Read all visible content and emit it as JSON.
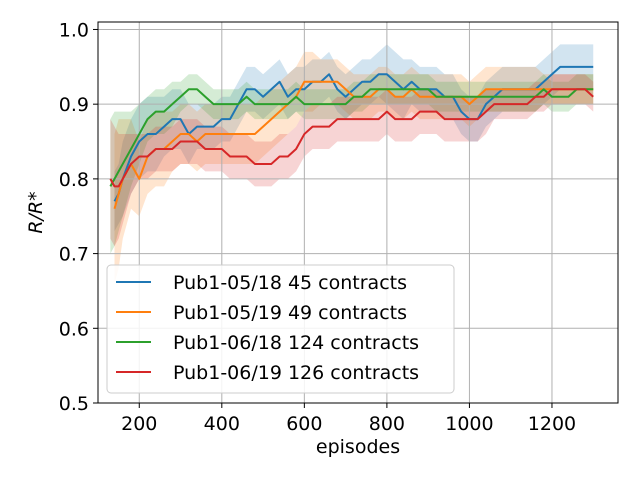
{
  "chart_data": {
    "type": "line",
    "title": "",
    "xlabel": "episodes",
    "ylabel": "R/R*",
    "xlim": [
      100,
      1360
    ],
    "ylim": [
      0.5,
      1.01
    ],
    "xticks": [
      200,
      400,
      600,
      800,
      1000,
      1200
    ],
    "yticks": [
      0.5,
      0.6,
      0.7,
      0.8,
      0.9,
      1.0
    ],
    "xtick_labels": [
      "200",
      "400",
      "600",
      "800",
      "1000",
      "1200"
    ],
    "ytick_labels": [
      "0.5",
      "0.6",
      "0.7",
      "0.8",
      "0.9",
      "1.0"
    ],
    "grid": true,
    "legend_position": "lower-left",
    "series": [
      {
        "name": "Pub1-05/18 45 contracts",
        "color": "#1f77b4",
        "x": [
          140,
          150,
          160,
          180,
          200,
          220,
          240,
          260,
          280,
          300,
          320,
          340,
          360,
          380,
          400,
          420,
          440,
          460,
          480,
          500,
          520,
          540,
          560,
          580,
          600,
          620,
          640,
          660,
          680,
          700,
          720,
          740,
          760,
          780,
          800,
          820,
          840,
          860,
          880,
          900,
          920,
          940,
          960,
          980,
          1000,
          1020,
          1040,
          1060,
          1080,
          1100,
          1120,
          1140,
          1160,
          1180,
          1200,
          1220,
          1240,
          1260,
          1280,
          1300
        ],
        "y": [
          0.77,
          0.78,
          0.8,
          0.83,
          0.85,
          0.86,
          0.86,
          0.87,
          0.88,
          0.88,
          0.86,
          0.87,
          0.87,
          0.87,
          0.88,
          0.88,
          0.9,
          0.92,
          0.92,
          0.91,
          0.92,
          0.93,
          0.91,
          0.92,
          0.92,
          0.93,
          0.93,
          0.94,
          0.92,
          0.91,
          0.92,
          0.93,
          0.93,
          0.94,
          0.94,
          0.93,
          0.92,
          0.93,
          0.92,
          0.92,
          0.92,
          0.91,
          0.91,
          0.89,
          0.88,
          0.88,
          0.9,
          0.91,
          0.92,
          0.92,
          0.92,
          0.92,
          0.92,
          0.93,
          0.94,
          0.95,
          0.95,
          0.95,
          0.95,
          0.95
        ],
        "band": [
          0.04,
          0.04,
          0.05,
          0.05,
          0.05,
          0.05,
          0.05,
          0.04,
          0.04,
          0.04,
          0.04,
          0.03,
          0.03,
          0.03,
          0.03,
          0.03,
          0.03,
          0.03,
          0.03,
          0.03,
          0.03,
          0.03,
          0.03,
          0.03,
          0.03,
          0.03,
          0.03,
          0.03,
          0.03,
          0.03,
          0.03,
          0.03,
          0.03,
          0.03,
          0.04,
          0.04,
          0.04,
          0.03,
          0.03,
          0.03,
          0.03,
          0.03,
          0.03,
          0.03,
          0.03,
          0.03,
          0.03,
          0.03,
          0.03,
          0.03,
          0.03,
          0.03,
          0.03,
          0.03,
          0.03,
          0.03,
          0.03,
          0.03,
          0.03,
          0.03
        ]
      },
      {
        "name": "Pub1-05/19 49 contracts",
        "color": "#ff7f0e",
        "x": [
          140,
          150,
          160,
          180,
          200,
          220,
          240,
          260,
          280,
          300,
          320,
          340,
          360,
          380,
          400,
          420,
          440,
          460,
          480,
          500,
          520,
          540,
          560,
          580,
          600,
          620,
          640,
          660,
          680,
          700,
          720,
          740,
          760,
          780,
          800,
          820,
          840,
          860,
          880,
          900,
          920,
          940,
          960,
          980,
          1000,
          1020,
          1040,
          1060,
          1080,
          1100,
          1120,
          1140,
          1160,
          1180,
          1200,
          1220,
          1240,
          1260,
          1280,
          1300
        ],
        "y": [
          0.76,
          0.78,
          0.8,
          0.82,
          0.8,
          0.83,
          0.84,
          0.84,
          0.85,
          0.86,
          0.86,
          0.85,
          0.86,
          0.86,
          0.86,
          0.86,
          0.86,
          0.86,
          0.86,
          0.87,
          0.88,
          0.89,
          0.9,
          0.91,
          0.93,
          0.93,
          0.93,
          0.93,
          0.93,
          0.92,
          0.91,
          0.91,
          0.91,
          0.92,
          0.92,
          0.91,
          0.91,
          0.92,
          0.91,
          0.91,
          0.91,
          0.91,
          0.91,
          0.91,
          0.9,
          0.91,
          0.92,
          0.92,
          0.92,
          0.92,
          0.92,
          0.92,
          0.92,
          0.92,
          0.92,
          0.92,
          0.92,
          0.92,
          0.92,
          0.92
        ],
        "band": [
          0.1,
          0.1,
          0.08,
          0.06,
          0.05,
          0.05,
          0.05,
          0.05,
          0.04,
          0.04,
          0.04,
          0.04,
          0.04,
          0.04,
          0.04,
          0.04,
          0.04,
          0.04,
          0.04,
          0.04,
          0.04,
          0.04,
          0.04,
          0.04,
          0.04,
          0.04,
          0.03,
          0.03,
          0.03,
          0.03,
          0.03,
          0.03,
          0.03,
          0.03,
          0.03,
          0.03,
          0.03,
          0.03,
          0.03,
          0.03,
          0.03,
          0.03,
          0.03,
          0.03,
          0.03,
          0.03,
          0.03,
          0.03,
          0.03,
          0.03,
          0.03,
          0.03,
          0.03,
          0.02,
          0.02,
          0.02,
          0.02,
          0.02,
          0.02,
          0.02
        ]
      },
      {
        "name": "Pub1-06/18 124 contracts",
        "color": "#2ca02c",
        "x": [
          130,
          140,
          150,
          160,
          180,
          200,
          220,
          240,
          260,
          280,
          300,
          320,
          340,
          360,
          380,
          400,
          420,
          440,
          460,
          480,
          500,
          520,
          540,
          560,
          580,
          600,
          620,
          640,
          660,
          680,
          700,
          720,
          740,
          760,
          780,
          800,
          820,
          840,
          860,
          880,
          900,
          920,
          940,
          960,
          980,
          1000,
          1020,
          1040,
          1060,
          1080,
          1100,
          1120,
          1140,
          1160,
          1180,
          1200,
          1220,
          1240,
          1260,
          1280,
          1300
        ],
        "y": [
          0.79,
          0.8,
          0.81,
          0.82,
          0.84,
          0.86,
          0.88,
          0.89,
          0.89,
          0.9,
          0.91,
          0.92,
          0.92,
          0.91,
          0.9,
          0.9,
          0.9,
          0.9,
          0.91,
          0.9,
          0.9,
          0.9,
          0.9,
          0.9,
          0.91,
          0.9,
          0.9,
          0.9,
          0.9,
          0.9,
          0.9,
          0.91,
          0.91,
          0.92,
          0.92,
          0.92,
          0.92,
          0.92,
          0.92,
          0.92,
          0.92,
          0.91,
          0.91,
          0.91,
          0.91,
          0.91,
          0.91,
          0.91,
          0.91,
          0.91,
          0.91,
          0.91,
          0.91,
          0.91,
          0.92,
          0.91,
          0.91,
          0.91,
          0.92,
          0.92,
          0.92
        ],
        "band": [
          0.09,
          0.09,
          0.08,
          0.07,
          0.05,
          0.04,
          0.03,
          0.03,
          0.03,
          0.03,
          0.02,
          0.02,
          0.02,
          0.02,
          0.02,
          0.02,
          0.02,
          0.02,
          0.02,
          0.02,
          0.02,
          0.02,
          0.02,
          0.02,
          0.02,
          0.02,
          0.02,
          0.02,
          0.02,
          0.02,
          0.02,
          0.02,
          0.02,
          0.02,
          0.02,
          0.02,
          0.02,
          0.02,
          0.02,
          0.02,
          0.02,
          0.02,
          0.02,
          0.02,
          0.02,
          0.02,
          0.02,
          0.02,
          0.02,
          0.02,
          0.02,
          0.02,
          0.02,
          0.02,
          0.02,
          0.02,
          0.02,
          0.02,
          0.02,
          0.02,
          0.02
        ]
      },
      {
        "name": "Pub1-06/19 126 contracts",
        "color": "#d62728",
        "x": [
          130,
          140,
          150,
          160,
          180,
          200,
          220,
          240,
          260,
          280,
          300,
          320,
          340,
          360,
          380,
          400,
          420,
          440,
          460,
          480,
          500,
          520,
          540,
          560,
          580,
          600,
          620,
          640,
          660,
          680,
          700,
          720,
          740,
          760,
          780,
          800,
          820,
          840,
          860,
          880,
          900,
          920,
          940,
          960,
          980,
          1000,
          1020,
          1040,
          1060,
          1080,
          1100,
          1120,
          1140,
          1160,
          1180,
          1200,
          1220,
          1240,
          1260,
          1280,
          1300
        ],
        "y": [
          0.8,
          0.79,
          0.79,
          0.8,
          0.82,
          0.83,
          0.83,
          0.84,
          0.84,
          0.84,
          0.85,
          0.85,
          0.85,
          0.84,
          0.84,
          0.84,
          0.83,
          0.83,
          0.83,
          0.82,
          0.82,
          0.82,
          0.83,
          0.83,
          0.84,
          0.86,
          0.87,
          0.87,
          0.87,
          0.88,
          0.88,
          0.88,
          0.88,
          0.88,
          0.88,
          0.89,
          0.88,
          0.88,
          0.88,
          0.89,
          0.89,
          0.89,
          0.88,
          0.88,
          0.88,
          0.88,
          0.88,
          0.89,
          0.9,
          0.9,
          0.9,
          0.9,
          0.9,
          0.91,
          0.91,
          0.92,
          0.92,
          0.92,
          0.92,
          0.92,
          0.91
        ],
        "band": [
          0.08,
          0.08,
          0.07,
          0.06,
          0.04,
          0.03,
          0.03,
          0.03,
          0.03,
          0.03,
          0.03,
          0.03,
          0.03,
          0.03,
          0.03,
          0.03,
          0.03,
          0.03,
          0.03,
          0.03,
          0.03,
          0.03,
          0.03,
          0.03,
          0.03,
          0.03,
          0.03,
          0.03,
          0.03,
          0.03,
          0.03,
          0.03,
          0.03,
          0.03,
          0.03,
          0.03,
          0.03,
          0.03,
          0.03,
          0.03,
          0.03,
          0.03,
          0.03,
          0.03,
          0.03,
          0.03,
          0.03,
          0.03,
          0.02,
          0.02,
          0.02,
          0.02,
          0.02,
          0.02,
          0.02,
          0.02,
          0.02,
          0.02,
          0.02,
          0.02,
          0.02
        ]
      }
    ]
  }
}
